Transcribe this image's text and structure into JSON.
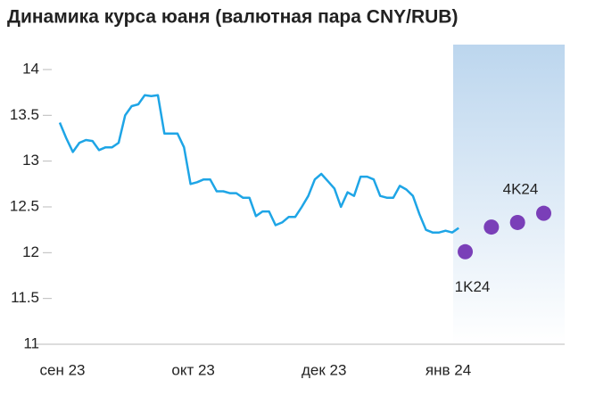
{
  "chart_data": {
    "type": "line",
    "title": "Динамика курса юаня (валютная пара CNY/RUB)",
    "categories": [
      "сен 23",
      null,
      null,
      null,
      null,
      null,
      null,
      null,
      null,
      null,
      null,
      null,
      null,
      null,
      null,
      null,
      null,
      null,
      null,
      null,
      "окт 23",
      null,
      null,
      null,
      null,
      null,
      null,
      null,
      null,
      null,
      null,
      null,
      null,
      null,
      null,
      null,
      null,
      null,
      null,
      null,
      "дек 23",
      null,
      null,
      null,
      null,
      null,
      null,
      null,
      null,
      null,
      null,
      null,
      null,
      null,
      null,
      null,
      null,
      null,
      null,
      "янв 24",
      null,
      null,
      null,
      null,
      null,
      null,
      null,
      null,
      null,
      null,
      null,
      null,
      null,
      null,
      null
    ],
    "series": [
      {
        "color": "#1ea5e6",
        "values": [
          13.42,
          13.25,
          13.1,
          13.2,
          13.23,
          13.22,
          13.12,
          13.15,
          13.15,
          13.2,
          13.5,
          13.6,
          13.62,
          13.72,
          13.71,
          13.72,
          13.3,
          13.3,
          13.3,
          13.15,
          12.75,
          12.77,
          12.8,
          12.8,
          12.67,
          12.67,
          12.65,
          12.65,
          12.6,
          12.6,
          12.4,
          12.45,
          12.45,
          12.3,
          12.33,
          12.39,
          12.39,
          12.5,
          12.62,
          12.8,
          12.86,
          12.78,
          12.7,
          12.5,
          12.66,
          12.62,
          12.83,
          12.83,
          12.8,
          12.62,
          12.6,
          12.6,
          12.73,
          12.69,
          12.62,
          12.42,
          12.25,
          12.22,
          12.22,
          12.24,
          12.22,
          12.27,
          null,
          null,
          null,
          null,
          null,
          null,
          null,
          null,
          null,
          null,
          null,
          null,
          null
        ]
      },
      {
        "color": "#7a3fb8",
        "marker": true,
        "values": [
          null,
          null,
          null,
          null,
          null,
          null,
          null,
          null,
          null,
          null,
          null,
          null,
          null,
          null,
          null,
          null,
          null,
          null,
          null,
          null,
          null,
          null,
          null,
          null,
          null,
          null,
          null,
          null,
          null,
          null,
          null,
          null,
          null,
          null,
          null,
          null,
          null,
          null,
          null,
          null,
          null,
          null,
          null,
          null,
          null,
          null,
          null,
          null,
          null,
          null,
          null,
          null,
          null,
          null,
          null,
          null,
          null,
          null,
          null,
          null,
          null,
          null,
          12.01,
          null,
          null,
          null,
          12.28,
          null,
          null,
          null,
          12.33,
          null,
          null,
          null,
          12.43
        ],
        "point_labels": [
          null,
          null,
          null,
          null,
          null,
          null,
          null,
          null,
          null,
          null,
          null,
          null,
          null,
          null,
          null,
          null,
          null,
          null,
          null,
          null,
          null,
          null,
          null,
          null,
          null,
          null,
          null,
          null,
          null,
          null,
          null,
          null,
          null,
          null,
          null,
          null,
          null,
          null,
          null,
          null,
          null,
          null,
          null,
          null,
          null,
          null,
          null,
          null,
          null,
          null,
          null,
          null,
          null,
          null,
          null,
          null,
          null,
          null,
          null,
          null,
          null,
          null,
          "1K24",
          null,
          null,
          null,
          null,
          null,
          null,
          null,
          null,
          null,
          null,
          null,
          "4K24"
        ]
      }
    ],
    "ylim": [
      11,
      14.25
    ],
    "yticks": [
      11,
      11.5,
      12,
      12.5,
      13,
      13.5,
      14
    ]
  }
}
